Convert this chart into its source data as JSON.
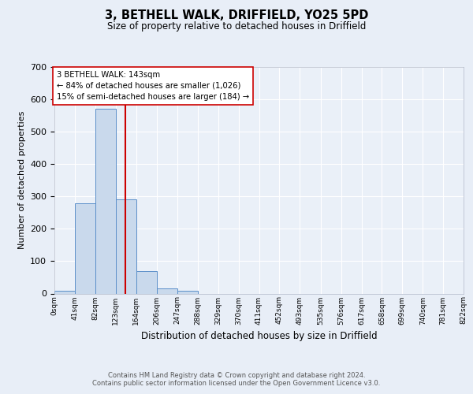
{
  "title": "3, BETHELL WALK, DRIFFIELD, YO25 5PD",
  "subtitle": "Size of property relative to detached houses in Driffield",
  "xlabel": "Distribution of detached houses by size in Driffield",
  "ylabel": "Number of detached properties",
  "bin_edges": [
    0,
    41,
    82,
    123,
    164,
    206,
    247,
    288,
    329,
    370,
    411,
    452,
    493,
    535,
    576,
    617,
    658,
    699,
    740,
    781,
    822
  ],
  "bar_heights": [
    8,
    280,
    570,
    292,
    70,
    17,
    9,
    0,
    0,
    0,
    0,
    0,
    0,
    0,
    0,
    0,
    0,
    0,
    0,
    0
  ],
  "bar_color": "#c9d9ec",
  "bar_edgecolor": "#5b8fc9",
  "vline_x": 143,
  "vline_color": "#cc0000",
  "annotation_text": "3 BETHELL WALK: 143sqm\n← 84% of detached houses are smaller (1,026)\n15% of semi-detached houses are larger (184) →",
  "annotation_box_edgecolor": "#cc0000",
  "annotation_box_facecolor": "#ffffff",
  "ylim": [
    0,
    700
  ],
  "yticks": [
    0,
    100,
    200,
    300,
    400,
    500,
    600,
    700
  ],
  "bg_color": "#e8eef7",
  "plot_bg_color": "#eaf0f8",
  "grid_color": "#ffffff",
  "footer_text": "Contains HM Land Registry data © Crown copyright and database right 2024.\nContains public sector information licensed under the Open Government Licence v3.0.",
  "tick_labels": [
    "0sqm",
    "41sqm",
    "82sqm",
    "123sqm",
    "164sqm",
    "206sqm",
    "247sqm",
    "288sqm",
    "329sqm",
    "370sqm",
    "411sqm",
    "452sqm",
    "493sqm",
    "535sqm",
    "576sqm",
    "617sqm",
    "658sqm",
    "699sqm",
    "740sqm",
    "781sqm",
    "822sqm"
  ]
}
